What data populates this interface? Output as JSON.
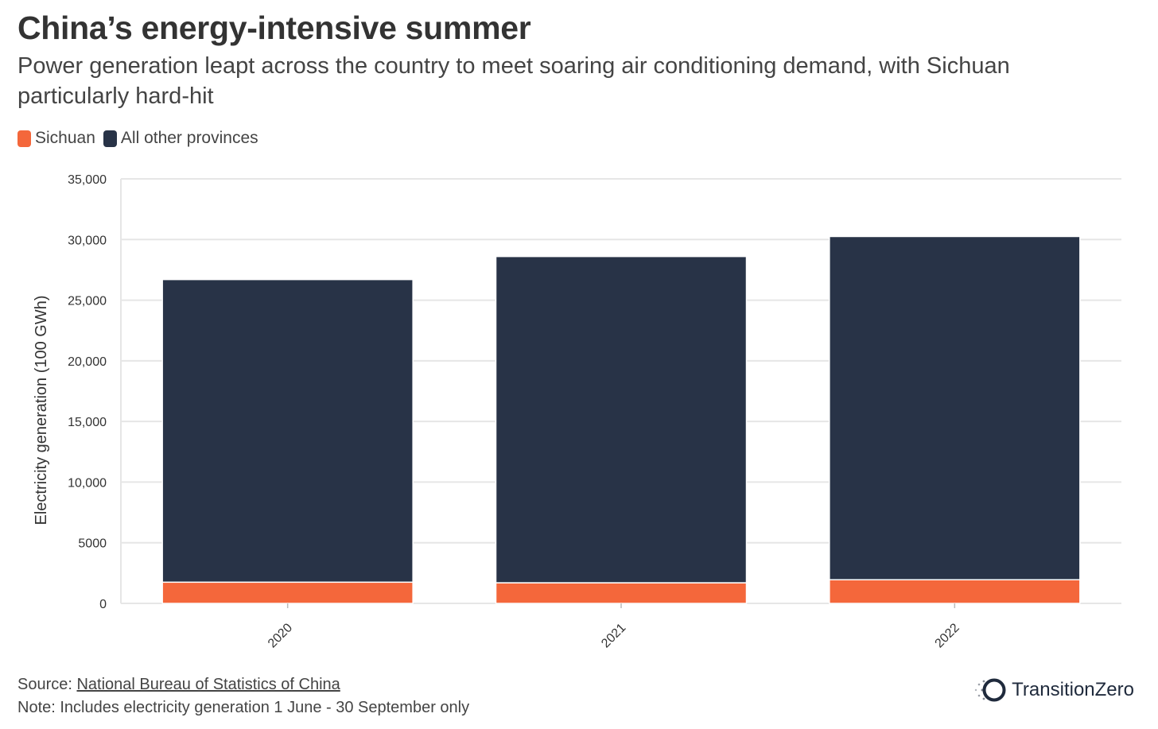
{
  "header": {
    "title": "China’s energy-intensive summer",
    "subtitle": "Power generation leapt across the country to meet soaring air conditioning demand, with Sichuan particularly hard-hit"
  },
  "colors": {
    "sichuan": "#f4673b",
    "other": "#283347",
    "grid": "#e6e6e6",
    "axis_text": "#333333"
  },
  "chart_data": {
    "type": "bar",
    "stacked": true,
    "categories": [
      "2020",
      "2021",
      "2022"
    ],
    "series": [
      {
        "name": "Sichuan",
        "values": [
          1750,
          1700,
          1950
        ]
      },
      {
        "name": "All other provinces",
        "values": [
          24950,
          26900,
          28300
        ]
      }
    ],
    "ylabel": "Electricity generation (100 GWh)",
    "ylim": [
      0,
      35000
    ],
    "yticks": [
      0,
      5000,
      10000,
      15000,
      20000,
      25000,
      30000,
      35000
    ],
    "ytick_labels": [
      "0",
      "5000",
      "10,000",
      "15,000",
      "20,000",
      "25,000",
      "30,000",
      "35,000"
    ],
    "grid": true,
    "legend_position": "top-left"
  },
  "footer": {
    "source_prefix": "Source: ",
    "source_link": "National Bureau of Statistics of China",
    "note": "Note: Includes electricity generation 1 June - 30 September only"
  },
  "logo": {
    "text": "TransitionZero",
    "icon": "transitionzero-ring-icon"
  }
}
